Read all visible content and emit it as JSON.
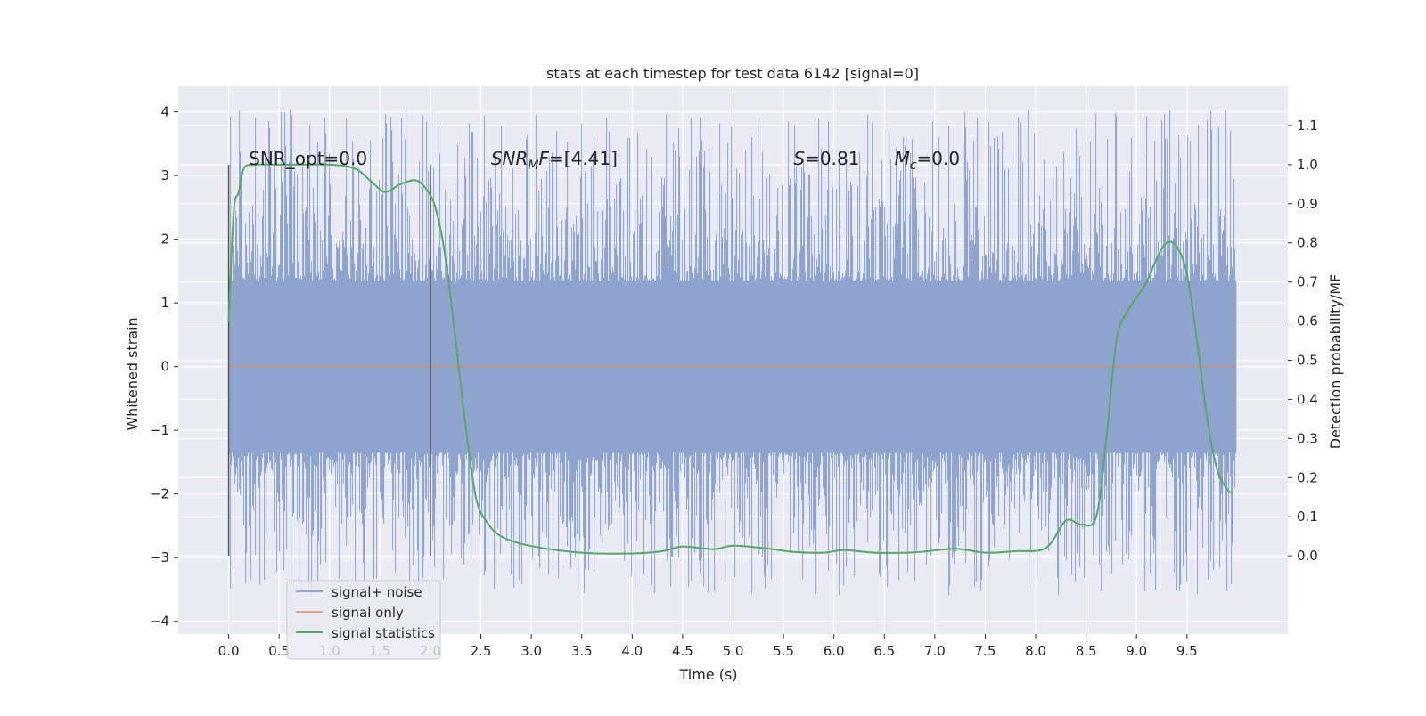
{
  "chart_data": {
    "type": "line",
    "title": "stats at each timestep for test data 6142 [signal=0]",
    "xlabel": "Time (s)",
    "ylabel": "Whitened strain",
    "y2label": "Detection probability/MF",
    "xlim": [
      -0.5,
      10.5
    ],
    "ylim": [
      -4.2,
      4.4
    ],
    "y2lim": [
      -0.2,
      1.2
    ],
    "x_ticks": [
      0.0,
      0.5,
      1.0,
      1.5,
      2.0,
      2.5,
      3.0,
      3.5,
      4.0,
      4.5,
      5.0,
      5.5,
      6.0,
      6.5,
      7.0,
      7.5,
      8.0,
      8.5,
      9.0,
      9.5
    ],
    "x_tick_labels": [
      "0.0",
      "0.5",
      "1.0",
      "1.5",
      "2.0",
      "2.5",
      "3.0",
      "3.5",
      "4.0",
      "4.5",
      "5.0",
      "5.5",
      "6.0",
      "6.5",
      "7.0",
      "7.5",
      "8.0",
      "8.5",
      "9.0",
      "9.5"
    ],
    "y_ticks": [
      -4,
      -3,
      -2,
      -1,
      0,
      1,
      2,
      3,
      4
    ],
    "y_tick_labels": [
      "−4",
      "−3",
      "−2",
      "−1",
      "0",
      "1",
      "2",
      "3",
      "4"
    ],
    "y2_ticks": [
      0.0,
      0.1,
      0.2,
      0.3,
      0.4,
      0.5,
      0.6,
      0.7,
      0.8,
      0.9,
      1.0,
      1.1
    ],
    "y2_tick_labels": [
      "0.0",
      "0.1",
      "0.2",
      "0.3",
      "0.4",
      "0.5",
      "0.6",
      "0.7",
      "0.8",
      "0.9",
      "1.0",
      "1.1"
    ],
    "grid": true,
    "legend_position": "lower-left",
    "window_markers": {
      "x": [
        0.0,
        2.0
      ],
      "y_range": [
        0.0,
        1.0
      ],
      "axis": "y2",
      "color": "#555555"
    },
    "annotations": [
      {
        "text": "SNR_opt=0.0",
        "x": 0.2,
        "y": 1.0,
        "axis": "y2"
      },
      {
        "text": "SNR_MF=[4.41]",
        "main": "SNR",
        "sub": "M",
        "tail": "F=[4.41]",
        "x": 2.6,
        "y": 1.0,
        "axis": "y2"
      },
      {
        "text": "S=0.81",
        "main": "S",
        "tail": "=0.81",
        "x": 5.6,
        "y": 1.0,
        "axis": "y2"
      },
      {
        "text": "M_c=0.0",
        "main": "M",
        "sub": "c",
        "tail": "=0.0",
        "x": 6.6,
        "y": 1.0,
        "axis": "y2"
      }
    ],
    "series": [
      {
        "name": "signal+ noise",
        "color": "#8ea4cf",
        "axis": "y",
        "kind": "dense_noise",
        "x_range": [
          0.0,
          9.99
        ],
        "band": [
          -1.35,
          1.35
        ],
        "extremes": [
          -3.6,
          4.05
        ],
        "values": []
      },
      {
        "name": "signal only",
        "color": "#dd8452",
        "axis": "y",
        "x": [
          0.0,
          9.99
        ],
        "values": [
          0.0,
          0.0
        ]
      },
      {
        "name": "signal statistics",
        "color": "#55a868",
        "axis": "y2",
        "x": [
          0.0,
          0.05,
          0.1,
          0.15,
          0.25,
          0.5,
          1.0,
          1.25,
          1.4,
          1.55,
          1.7,
          1.85,
          1.95,
          2.05,
          2.15,
          2.25,
          2.35,
          2.45,
          2.55,
          2.7,
          3.0,
          3.5,
          4.0,
          4.3,
          4.5,
          4.8,
          5.0,
          5.3,
          5.6,
          5.9,
          6.1,
          6.4,
          6.8,
          7.2,
          7.5,
          7.8,
          8.1,
          8.3,
          8.45,
          8.6,
          8.7,
          8.8,
          8.9,
          9.0,
          9.1,
          9.2,
          9.3,
          9.4,
          9.5,
          9.6,
          9.7,
          9.8,
          9.9,
          9.95
        ],
        "values": [
          0.6,
          0.88,
          0.93,
          0.99,
          1.0,
          1.0,
          1.0,
          0.99,
          0.96,
          0.93,
          0.95,
          0.96,
          0.94,
          0.89,
          0.76,
          0.55,
          0.33,
          0.15,
          0.09,
          0.05,
          0.025,
          0.008,
          0.006,
          0.012,
          0.024,
          0.017,
          0.026,
          0.02,
          0.01,
          0.008,
          0.015,
          0.008,
          0.009,
          0.018,
          0.008,
          0.012,
          0.02,
          0.09,
          0.08,
          0.1,
          0.3,
          0.55,
          0.62,
          0.66,
          0.7,
          0.76,
          0.8,
          0.79,
          0.72,
          0.55,
          0.35,
          0.22,
          0.17,
          0.16
        ]
      }
    ]
  }
}
